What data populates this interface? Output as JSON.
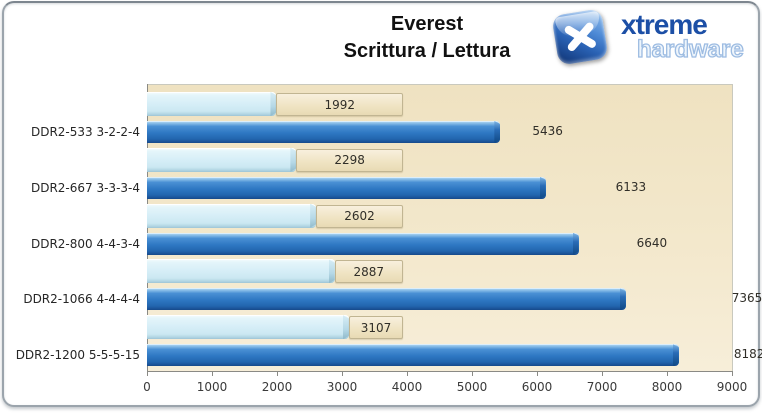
{
  "title": {
    "line1": "Everest",
    "line2": "Scrittura / Lettura"
  },
  "logo": {
    "brand": "xtreme",
    "brand_sub": "hardware",
    "icon": "x-tile-icon"
  },
  "chart_data": {
    "type": "bar",
    "orientation": "horizontal",
    "title": "Everest",
    "subtitle": "Scrittura / Lettura",
    "categories": [
      "DDR2-533 3-2-2-4",
      "DDR2-667 3-3-3-4",
      "DDR2-800 4-4-3-4",
      "DDR2-1066 4-4-4-4",
      "DDR2-1200 5-5-5-15"
    ],
    "series": [
      {
        "name": "Scrittura",
        "color": "#d6eef7",
        "label_style": "beige-box",
        "values": [
          1992,
          2298,
          2602,
          2887,
          3107
        ]
      },
      {
        "name": "Lettura",
        "color": "#2e77c2",
        "label_style": "plain",
        "values": [
          5436,
          6133,
          6640,
          7365,
          8182
        ]
      }
    ],
    "xlim": [
      0,
      9000
    ],
    "x_ticks": [
      0,
      1000,
      2000,
      3000,
      4000,
      5000,
      6000,
      7000,
      8000,
      9000
    ],
    "grid": false,
    "legend": "none",
    "plot_background": "#f2e7cb"
  }
}
